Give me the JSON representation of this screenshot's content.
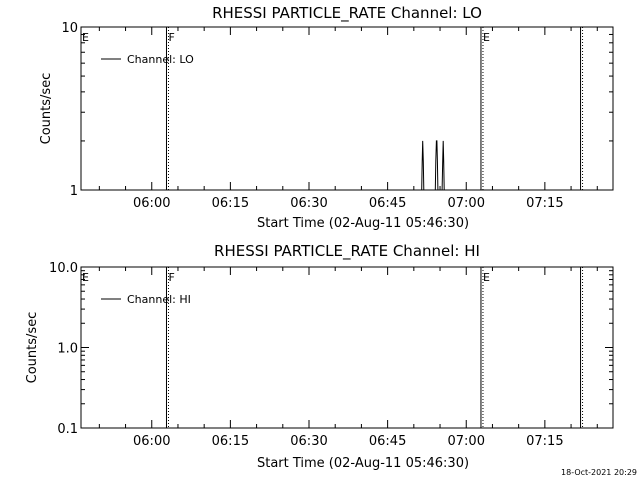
{
  "footer": {
    "timestamp": "18-Oct-2021 20:29"
  },
  "chart_data": [
    {
      "type": "line",
      "title": "RHESSI PARTICLE_RATE Channel: LO",
      "xlabel": "Start Time (02-Aug-11 05:46:30)",
      "ylabel": "Counts/sec",
      "yscale": "log",
      "ylim": [
        1,
        10
      ],
      "xlim": [
        "05:46:30",
        "07:28:00"
      ],
      "x_tick_labels": [
        "06:00",
        "06:15",
        "06:30",
        "06:45",
        "07:00",
        "07:15"
      ],
      "y_tick_labels": [
        "1",
        "10"
      ],
      "legend": {
        "placement": "top-left",
        "entries": [
          "Channel: LO"
        ]
      },
      "grid": false,
      "markers": [
        {
          "time": "05:46:30",
          "label": "E",
          "style": "none"
        },
        {
          "time": "06:03:00",
          "label": "F",
          "style": "dotted"
        },
        {
          "time": "07:03:00",
          "label": "E",
          "style": "dotted"
        },
        {
          "time": "07:22:00",
          "label": "",
          "style": "dotted"
        }
      ],
      "series": [
        {
          "name": "Channel: LO",
          "points": [
            [
              "06:51:30",
              1
            ],
            [
              "06:51:36",
              1.5
            ],
            [
              "06:51:42",
              2
            ],
            [
              "06:51:48",
              1.5
            ],
            [
              "06:51:54",
              1
            ],
            [
              "06:54:06",
              1
            ],
            [
              "06:54:12",
              1.5
            ],
            [
              "06:54:18",
              2
            ],
            [
              "06:54:24",
              2
            ],
            [
              "06:54:30",
              1.5
            ],
            [
              "06:54:36",
              1
            ],
            [
              "06:55:24",
              1
            ],
            [
              "06:55:30",
              1.5
            ],
            [
              "06:55:36",
              2
            ],
            [
              "06:55:42",
              1.5
            ],
            [
              "06:55:48",
              1
            ]
          ]
        }
      ]
    },
    {
      "type": "line",
      "title": "RHESSI PARTICLE_RATE Channel: HI",
      "xlabel": "Start Time (02-Aug-11 05:46:30)",
      "ylabel": "Counts/sec",
      "yscale": "log",
      "ylim": [
        0.1,
        10
      ],
      "xlim": [
        "05:46:30",
        "07:28:00"
      ],
      "x_tick_labels": [
        "06:00",
        "06:15",
        "06:30",
        "06:45",
        "07:00",
        "07:15"
      ],
      "y_tick_labels": [
        "0.1",
        "1.0",
        "10.0"
      ],
      "legend": {
        "placement": "top-left",
        "entries": [
          "Channel: HI"
        ]
      },
      "grid": false,
      "markers": [
        {
          "time": "05:46:30",
          "label": "E",
          "style": "none"
        },
        {
          "time": "06:03:00",
          "label": "F",
          "style": "dotted"
        },
        {
          "time": "07:03:00",
          "label": "E",
          "style": "dotted"
        },
        {
          "time": "07:22:00",
          "label": "",
          "style": "dotted"
        }
      ],
      "series": [
        {
          "name": "Channel: HI",
          "points": []
        }
      ]
    }
  ]
}
